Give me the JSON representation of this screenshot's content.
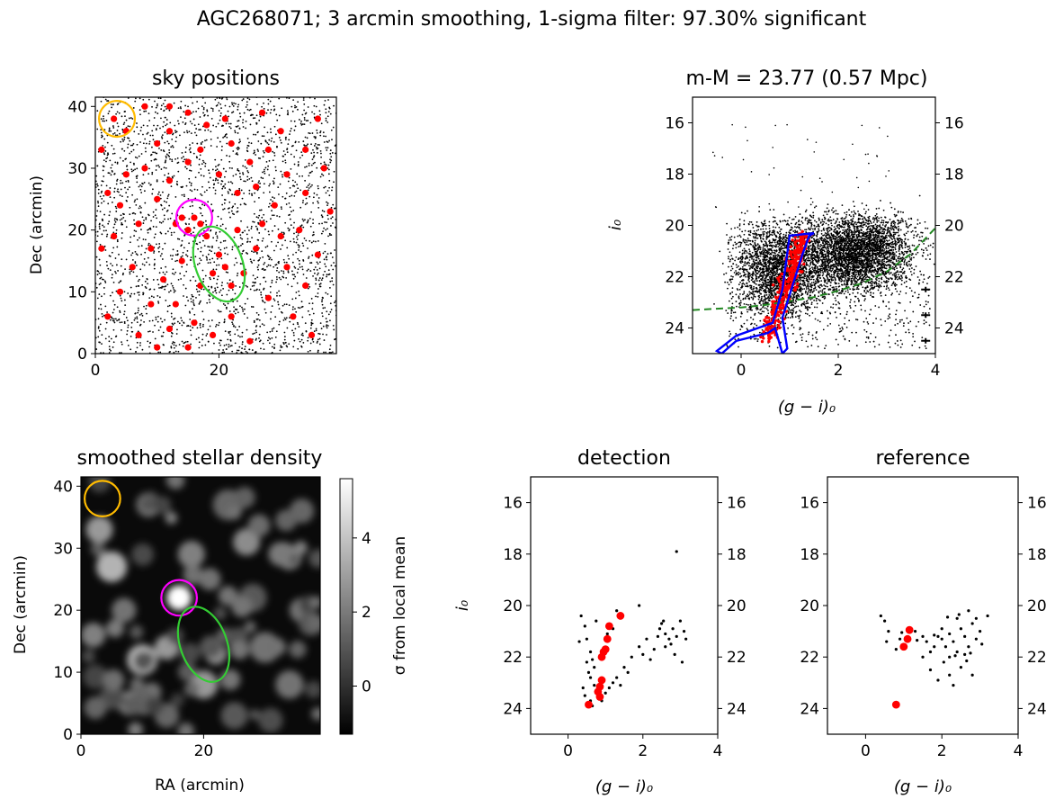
{
  "figure_title": "AGC268071; 3 arcmin smoothing, 1-sigma filter: 97.30% significant",
  "colors": {
    "star": "#000000",
    "selected": "#ff0000",
    "iso": "#0000ff",
    "detection_circle": "#ff00ff",
    "reference_circle": "#ffbb00",
    "galaxy_ellipse": "#33cc33",
    "limit_curve": "#228822"
  },
  "chart_data": [
    {
      "id": "sky",
      "type": "scatter",
      "title": "sky positions",
      "xlabel": "",
      "ylabel": "Dec (arcmin)",
      "xlim": [
        0,
        39
      ],
      "ylim": [
        0,
        41.5
      ],
      "xticks": [
        "0",
        "20"
      ],
      "yticks": [
        "0",
        "10",
        "20",
        "30",
        "40"
      ],
      "background_stars": 2600,
      "selected_stars": [
        [
          3,
          38
        ],
        [
          5,
          36
        ],
        [
          14,
          22
        ],
        [
          15,
          20
        ],
        [
          16,
          22
        ],
        [
          17,
          21
        ],
        [
          13,
          21
        ],
        [
          18,
          19
        ],
        [
          20,
          16
        ],
        [
          21,
          14
        ],
        [
          22,
          11
        ],
        [
          19,
          13
        ],
        [
          2,
          26
        ],
        [
          4,
          24
        ],
        [
          8,
          30
        ],
        [
          10,
          34
        ],
        [
          12,
          36
        ],
        [
          18,
          37
        ],
        [
          21,
          38
        ],
        [
          27,
          39
        ],
        [
          30,
          36
        ],
        [
          34,
          33
        ],
        [
          37,
          30
        ],
        [
          26,
          27
        ],
        [
          29,
          24
        ],
        [
          33,
          20
        ],
        [
          36,
          16
        ],
        [
          24,
          13
        ],
        [
          28,
          9
        ],
        [
          32,
          6
        ],
        [
          35,
          3
        ],
        [
          25,
          2
        ],
        [
          15,
          1
        ],
        [
          7,
          3
        ],
        [
          2,
          6
        ],
        [
          4,
          10
        ],
        [
          6,
          14
        ],
        [
          9,
          17
        ],
        [
          11,
          12
        ],
        [
          13,
          8
        ],
        [
          16,
          5
        ],
        [
          19,
          3
        ],
        [
          22,
          6
        ],
        [
          26,
          17
        ],
        [
          31,
          14
        ],
        [
          34,
          11
        ],
        [
          38,
          23
        ],
        [
          1,
          17
        ],
        [
          3,
          19
        ],
        [
          7,
          21
        ],
        [
          10,
          25
        ],
        [
          12,
          28
        ],
        [
          15,
          31
        ],
        [
          17,
          33
        ],
        [
          20,
          29
        ],
        [
          23,
          26
        ],
        [
          25,
          31
        ],
        [
          28,
          33
        ],
        [
          31,
          29
        ],
        [
          34,
          26
        ],
        [
          36,
          38
        ],
        [
          8,
          40
        ],
        [
          12,
          40
        ],
        [
          15,
          39
        ],
        [
          22,
          34
        ],
        [
          1,
          33
        ],
        [
          5,
          29
        ],
        [
          9,
          8
        ],
        [
          12,
          4
        ],
        [
          23,
          20
        ],
        [
          27,
          21
        ],
        [
          30,
          19
        ],
        [
          14,
          15
        ],
        [
          17,
          11
        ],
        [
          10,
          1
        ]
      ],
      "circles": [
        {
          "name": "detection",
          "cx": 16,
          "cy": 22,
          "r": 2.9,
          "color": "#ff00ff"
        },
        {
          "name": "reference",
          "cx": 3.5,
          "cy": 38,
          "r": 2.9,
          "color": "#ffbb00"
        },
        {
          "name": "galaxy",
          "type": "ellipse",
          "cx": 20,
          "cy": 14.5,
          "rx": 3.8,
          "ry": 6.3,
          "angle": 20,
          "color": "#33cc33"
        }
      ]
    },
    {
      "id": "cmd",
      "type": "scatter",
      "title": "m-M = 23.77 (0.57 Mpc)",
      "xlabel": "(g − i)₀",
      "ylabel": "i₀",
      "xlim": [
        -1,
        4
      ],
      "ylim": [
        25,
        15
      ],
      "xticks": [
        "0",
        "2",
        "4"
      ],
      "yticks": [
        "16",
        "18",
        "20",
        "22",
        "24"
      ],
      "limit_curve": [
        [
          -1,
          23.3
        ],
        [
          -0.5,
          23.25
        ],
        [
          0,
          23.2
        ],
        [
          0.5,
          23.1
        ],
        [
          1,
          22.95
        ],
        [
          1.5,
          22.8
        ],
        [
          2,
          22.55
        ],
        [
          2.5,
          22.25
        ],
        [
          3,
          21.8
        ],
        [
          3.5,
          21.1
        ],
        [
          4,
          20.1
        ]
      ],
      "isochrone_outer": [
        [
          1.5,
          20.3
        ],
        [
          1.0,
          20.4
        ],
        [
          0.85,
          22.5
        ],
        [
          0.65,
          23.8
        ],
        [
          -0.1,
          24.3
        ],
        [
          -0.5,
          24.9
        ],
        [
          -0.4,
          25
        ],
        [
          -0.1,
          24.5
        ],
        [
          0.55,
          24.2
        ],
        [
          0.7,
          24.0
        ],
        [
          0.85,
          25
        ],
        [
          0.95,
          24.8
        ],
        [
          0.85,
          23.6
        ],
        [
          1.25,
          21.2
        ],
        [
          1.4,
          20.4
        ]
      ],
      "error_bars": [
        [
          3.8,
          22.5
        ],
        [
          3.8,
          23.5
        ],
        [
          3.8,
          24.5
        ]
      ]
    },
    {
      "id": "density",
      "type": "heatmap",
      "title": "smoothed stellar density",
      "xlabel": "RA (arcmin)",
      "ylabel": "Dec (arcmin)",
      "xlim": [
        0,
        39
      ],
      "ylim": [
        0,
        41.5
      ],
      "xticks": [
        "0",
        "20"
      ],
      "yticks": [
        "0",
        "10",
        "20",
        "30",
        "40"
      ],
      "colorbar_label": "σ from local mean",
      "colorbar_ticks": [
        "0",
        "2",
        "4"
      ],
      "colorbar_range": [
        -1.3,
        5.6
      ],
      "blobs": [
        [
          16,
          22,
          2.0,
          1.0
        ],
        [
          5,
          27,
          2.5,
          0.7
        ],
        [
          3,
          33,
          2.2,
          0.6
        ],
        [
          10,
          12,
          2.5,
          0.7
        ],
        [
          14,
          14,
          2.0,
          0.6
        ],
        [
          20,
          8,
          2.3,
          0.6
        ],
        [
          22,
          13,
          1.8,
          0.55
        ],
        [
          27,
          31,
          2.2,
          0.55
        ],
        [
          33,
          29,
          2.0,
          0.5
        ],
        [
          30,
          14,
          2.5,
          0.45
        ],
        [
          34,
          8,
          2.3,
          0.45
        ],
        [
          8,
          5,
          2.0,
          0.55
        ],
        [
          24,
          37,
          2.5,
          0.4
        ],
        [
          11,
          37,
          2.0,
          0.45
        ],
        [
          36,
          36,
          2.0,
          0.4
        ],
        [
          18,
          29,
          2.2,
          0.5
        ],
        [
          2,
          16,
          2.0,
          0.5
        ],
        [
          28,
          22,
          2.3,
          0.35
        ],
        [
          36,
          20,
          2.0,
          0.45
        ],
        [
          14,
          3,
          2.0,
          0.4
        ],
        [
          25,
          3,
          2.2,
          0.35
        ],
        [
          7,
          20,
          2.0,
          0.45
        ],
        [
          21,
          25,
          1.8,
          0.45
        ]
      ],
      "circles": [
        {
          "name": "detection",
          "cx": 16,
          "cy": 22,
          "r": 2.9,
          "color": "#ff00ff"
        },
        {
          "name": "reference",
          "cx": 3.5,
          "cy": 38,
          "r": 2.9,
          "color": "#ffbb00"
        },
        {
          "name": "galaxy",
          "type": "ellipse",
          "cx": 20,
          "cy": 14.5,
          "rx": 3.8,
          "ry": 6.3,
          "angle": 20,
          "color": "#33cc33"
        }
      ]
    },
    {
      "id": "detection",
      "type": "scatter",
      "title": "detection",
      "xlabel": "(g − i)₀",
      "ylabel": "i₀",
      "xlim": [
        -1,
        4
      ],
      "ylim": [
        25,
        15
      ],
      "xticks": [
        "0",
        "2",
        "4"
      ],
      "yticks": [
        "16",
        "18",
        "20",
        "22",
        "24"
      ],
      "stars": [
        [
          0.35,
          20.4
        ],
        [
          0.45,
          20.8
        ],
        [
          0.5,
          21.3
        ],
        [
          0.3,
          21.4
        ],
        [
          0.6,
          21.8
        ],
        [
          0.65,
          22.1
        ],
        [
          0.7,
          22.4
        ],
        [
          0.55,
          22.6
        ],
        [
          0.6,
          22.8
        ],
        [
          0.7,
          23.1
        ],
        [
          0.4,
          23.2
        ],
        [
          0.45,
          23.5
        ],
        [
          0.6,
          23.7
        ],
        [
          0.8,
          23.3
        ],
        [
          0.9,
          23.1
        ],
        [
          1.0,
          23.4
        ],
        [
          1.1,
          23.2
        ],
        [
          1.2,
          23.0
        ],
        [
          1.3,
          22.8
        ],
        [
          1.5,
          22.4
        ],
        [
          1.7,
          22.0
        ],
        [
          1.9,
          21.6
        ],
        [
          2.0,
          21.9
        ],
        [
          2.2,
          22.1
        ],
        [
          2.3,
          21.7
        ],
        [
          2.4,
          21.2
        ],
        [
          2.5,
          20.7
        ],
        [
          2.6,
          21.1
        ],
        [
          2.7,
          21.3
        ],
        [
          2.8,
          20.9
        ],
        [
          2.9,
          21.2
        ],
        [
          3.0,
          20.6
        ],
        [
          3.1,
          21.0
        ],
        [
          2.6,
          21.6
        ],
        [
          2.85,
          21.9
        ],
        [
          1.9,
          20.0
        ],
        [
          2.9,
          17.9
        ],
        [
          1.3,
          20.2
        ],
        [
          0.75,
          20.6
        ],
        [
          1.05,
          21.1
        ],
        [
          2.55,
          20.6
        ],
        [
          2.75,
          21.5
        ],
        [
          3.15,
          21.3
        ],
        [
          2.45,
          20.9
        ],
        [
          0.5,
          22.2
        ],
        [
          1.6,
          22.6
        ],
        [
          1.4,
          23.1
        ],
        [
          0.9,
          23.7
        ],
        [
          1.2,
          20.9
        ],
        [
          2.1,
          21.3
        ],
        [
          0.65,
          23.9
        ],
        [
          3.05,
          22.2
        ]
      ],
      "selected": [
        [
          0.55,
          23.85
        ],
        [
          0.85,
          23.55
        ],
        [
          0.8,
          23.35
        ],
        [
          0.85,
          23.15
        ],
        [
          0.9,
          22.9
        ],
        [
          0.9,
          22.0
        ],
        [
          0.95,
          21.8
        ],
        [
          1.0,
          21.7
        ],
        [
          1.05,
          21.3
        ],
        [
          1.1,
          20.8
        ],
        [
          1.4,
          20.4
        ]
      ]
    },
    {
      "id": "reference",
      "type": "scatter",
      "title": "reference",
      "xlabel": "(g − i)₀",
      "ylabel": "",
      "xlim": [
        -1,
        4
      ],
      "ylim": [
        25,
        15
      ],
      "xticks": [
        "0",
        "2",
        "4"
      ],
      "yticks": [
        "16",
        "18",
        "20",
        "22",
        "24"
      ],
      "stars": [
        [
          0.4,
          20.4
        ],
        [
          0.5,
          20.6
        ],
        [
          0.6,
          21.0
        ],
        [
          0.55,
          21.4
        ],
        [
          0.8,
          21.7
        ],
        [
          0.9,
          21.3
        ],
        [
          1.3,
          21.0
        ],
        [
          1.5,
          21.2
        ],
        [
          1.6,
          21.4
        ],
        [
          1.7,
          21.8
        ],
        [
          1.8,
          21.6
        ],
        [
          1.9,
          21.2
        ],
        [
          2.0,
          21.3
        ],
        [
          2.1,
          21.6
        ],
        [
          2.2,
          21.1
        ],
        [
          2.3,
          21.4
        ],
        [
          2.4,
          21.8
        ],
        [
          2.5,
          20.9
        ],
        [
          2.6,
          21.2
        ],
        [
          2.7,
          21.6
        ],
        [
          2.8,
          20.7
        ],
        [
          2.9,
          21.3
        ],
        [
          3.0,
          21.0
        ],
        [
          3.2,
          20.4
        ],
        [
          2.7,
          20.2
        ],
        [
          2.4,
          20.5
        ],
        [
          2.0,
          20.9
        ],
        [
          1.7,
          22.5
        ],
        [
          1.9,
          22.9
        ],
        [
          2.2,
          22.7
        ],
        [
          2.5,
          22.4
        ],
        [
          2.8,
          22.7
        ],
        [
          2.3,
          23.1
        ],
        [
          2.6,
          21.9
        ],
        [
          1.5,
          22.0
        ],
        [
          2.05,
          22.2
        ],
        [
          2.35,
          21.95
        ],
        [
          2.75,
          21.85
        ],
        [
          0.95,
          21.05
        ],
        [
          1.35,
          21.35
        ],
        [
          2.45,
          20.35
        ],
        [
          2.15,
          20.45
        ],
        [
          3.05,
          21.5
        ],
        [
          2.65,
          22.15
        ],
        [
          1.8,
          21.15
        ],
        [
          2.2,
          22.0
        ],
        [
          2.9,
          20.5
        ]
      ],
      "selected": [
        [
          0.8,
          23.85
        ],
        [
          1.0,
          21.6
        ],
        [
          1.1,
          21.3
        ],
        [
          1.15,
          20.95
        ]
      ]
    }
  ]
}
